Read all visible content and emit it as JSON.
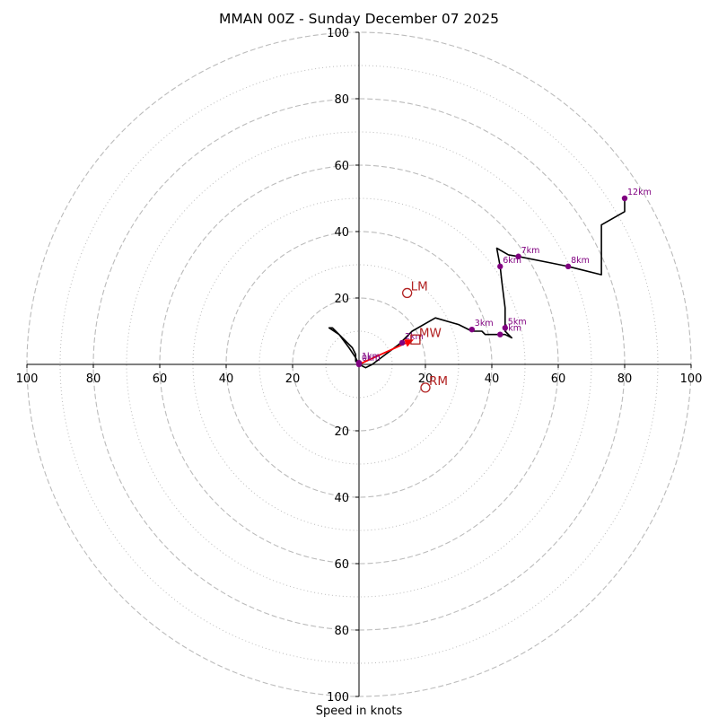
{
  "chart_data": {
    "type": "hodograph",
    "title": "MMAN 00Z - Sunday December 07 2025",
    "xlabel": "Speed in knots",
    "max_speed": 100,
    "major_rings": [
      20,
      40,
      60,
      80,
      100
    ],
    "minor_rings": [
      10,
      30,
      50,
      70,
      90
    ],
    "x_tick_labels": [
      "100",
      "80",
      "60",
      "40",
      "20",
      "20",
      "40",
      "60",
      "80",
      "100"
    ],
    "x_tick_values": [
      -100,
      -80,
      -60,
      -40,
      -20,
      20,
      40,
      60,
      80,
      100
    ],
    "y_tick_labels_top": [
      "20",
      "40",
      "60",
      "80",
      "100"
    ],
    "y_tick_labels_bottom": [
      "20",
      "40",
      "60",
      "80",
      "100"
    ],
    "y_tick_values_top": [
      20,
      40,
      60,
      80,
      100
    ],
    "y_tick_values_bottom": [
      -20,
      -40,
      -60,
      -80,
      -100
    ],
    "colors": {
      "trace": "#000000",
      "height_marker": "#800080",
      "motion": "#b22222",
      "shear_arrow": "#ff0000",
      "ring": "#bbbbbb"
    },
    "trace": [
      {
        "u": 0,
        "v": 0
      },
      {
        "u": -1,
        "v": 1
      },
      {
        "u": -1,
        "v": 3
      },
      {
        "u": -2,
        "v": 5
      },
      {
        "u": -6,
        "v": 9
      },
      {
        "u": -9,
        "v": 11
      },
      {
        "u": -8,
        "v": 11
      },
      {
        "u": -6,
        "v": 9
      },
      {
        "u": -3,
        "v": 5
      },
      {
        "u": -1,
        "v": 2
      },
      {
        "u": 0,
        "v": 0
      },
      {
        "u": 2,
        "v": -1
      },
      {
        "u": 4,
        "v": 0
      },
      {
        "u": 8,
        "v": 3
      },
      {
        "u": 12,
        "v": 6
      },
      {
        "u": 16,
        "v": 10
      },
      {
        "u": 23,
        "v": 14
      },
      {
        "u": 30,
        "v": 12
      },
      {
        "u": 34,
        "v": 10
      },
      {
        "u": 37,
        "v": 10
      },
      {
        "u": 38,
        "v": 9
      },
      {
        "u": 42,
        "v": 9
      },
      {
        "u": 44,
        "v": 9
      },
      {
        "u": 46,
        "v": 8
      },
      {
        "u": 44,
        "v": 10
      },
      {
        "u": 44,
        "v": 12
      },
      {
        "u": 44,
        "v": 17
      },
      {
        "u": 43,
        "v": 25
      },
      {
        "u": 42.5,
        "v": 29.5
      },
      {
        "u": 41.5,
        "v": 35
      },
      {
        "u": 45,
        "v": 33
      },
      {
        "u": 48,
        "v": 32.5
      },
      {
        "u": 58,
        "v": 30.5
      },
      {
        "u": 63,
        "v": 29.5
      },
      {
        "u": 73,
        "v": 27
      },
      {
        "u": 73,
        "v": 40
      },
      {
        "u": 73,
        "v": 42
      },
      {
        "u": 80,
        "v": 46
      },
      {
        "u": 80,
        "v": 50
      }
    ],
    "height_markers": [
      {
        "label": "0km",
        "u": 0,
        "v": 0
      },
      {
        "label": "1km",
        "u": 0,
        "v": 0.5
      },
      {
        "label": "2km",
        "u": 13,
        "v": 6.5
      },
      {
        "label": "3km",
        "u": 34,
        "v": 10.5
      },
      {
        "label": "4km",
        "u": 42.5,
        "v": 9
      },
      {
        "label": "5km",
        "u": 44,
        "v": 11
      },
      {
        "label": "6km",
        "u": 42.5,
        "v": 29.5
      },
      {
        "label": "7km",
        "u": 48,
        "v": 32.5
      },
      {
        "label": "8km",
        "u": 63,
        "v": 29.5
      },
      {
        "label": "12km",
        "u": 80,
        "v": 50
      }
    ],
    "storm_motions": [
      {
        "label": "LM",
        "u": 14.5,
        "v": 21.5,
        "marker": "circle"
      },
      {
        "label": "RM",
        "u": 20,
        "v": -7,
        "marker": "circle"
      },
      {
        "label": "MW",
        "u": 17,
        "v": 7.5,
        "marker": "square"
      }
    ],
    "shear_arrow": {
      "from": {
        "u": 0,
        "v": 0
      },
      "to": {
        "u": 16.5,
        "v": 7.5
      }
    }
  }
}
